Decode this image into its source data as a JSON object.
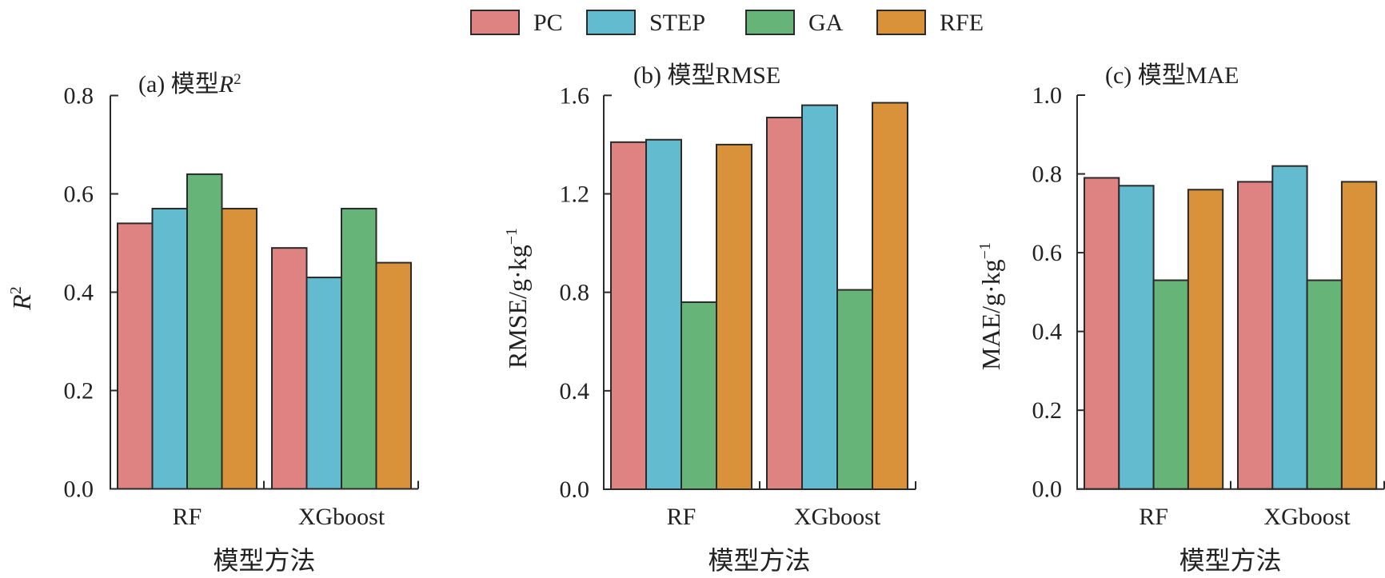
{
  "legend": {
    "items": [
      {
        "label": "PC",
        "color": "#DE8282"
      },
      {
        "label": "STEP",
        "color": "#62BBCF"
      },
      {
        "label": "GA",
        "color": "#66B477"
      },
      {
        "label": "RFE",
        "color": "#D99239"
      }
    ]
  },
  "chart_data": [
    {
      "type": "bar",
      "title": "(a) 模型R²",
      "title_prefix": "(a) 模型",
      "title_italic": "R",
      "title_sup": "2",
      "xlabel": "模型方法",
      "ylabel": "R²",
      "ylabel_italic": "R",
      "ylabel_sup": "2",
      "categories": [
        "RF",
        "XGboost"
      ],
      "ylim": [
        0,
        0.8
      ],
      "yticks": [
        0.0,
        0.2,
        0.4,
        0.6,
        0.8
      ],
      "ytick_labels": [
        "0.0",
        "0.2",
        "0.4",
        "0.6",
        "0.8"
      ],
      "grid": false,
      "series": [
        {
          "name": "PC",
          "values": [
            0.54,
            0.49
          ]
        },
        {
          "name": "STEP",
          "values": [
            0.57,
            0.43
          ]
        },
        {
          "name": "GA",
          "values": [
            0.64,
            0.57
          ]
        },
        {
          "name": "RFE",
          "values": [
            0.57,
            0.46
          ]
        }
      ]
    },
    {
      "type": "bar",
      "title": "(b) 模型RMSE",
      "xlabel": "模型方法",
      "ylabel": "RMSE/g·kg⁻¹",
      "ylabel_main": "RMSE/g·kg",
      "ylabel_sup": "−1",
      "categories": [
        "RF",
        "XGboost"
      ],
      "ylim": [
        0,
        1.6
      ],
      "yticks": [
        0.0,
        0.4,
        0.8,
        1.2,
        1.6
      ],
      "ytick_labels": [
        "0.0",
        "0.4",
        "0.8",
        "1.2",
        "1.6"
      ],
      "grid": false,
      "series": [
        {
          "name": "PC",
          "values": [
            1.41,
            1.51
          ]
        },
        {
          "name": "STEP",
          "values": [
            1.42,
            1.56
          ]
        },
        {
          "name": "GA",
          "values": [
            0.76,
            0.81
          ]
        },
        {
          "name": "RFE",
          "values": [
            1.4,
            1.57
          ]
        }
      ]
    },
    {
      "type": "bar",
      "title": "(c) 模型MAE",
      "xlabel": "模型方法",
      "ylabel": "MAE/g·kg⁻¹",
      "ylabel_main": "MAE/g·kg",
      "ylabel_sup": "−1",
      "categories": [
        "RF",
        "XGboost"
      ],
      "ylim": [
        0,
        1.0
      ],
      "yticks": [
        0.0,
        0.2,
        0.4,
        0.6,
        0.8,
        1.0
      ],
      "ytick_labels": [
        "0.0",
        "0.2",
        "0.4",
        "0.6",
        "0.8",
        "1.0"
      ],
      "grid": false,
      "series": [
        {
          "name": "PC",
          "values": [
            0.79,
            0.78
          ]
        },
        {
          "name": "STEP",
          "values": [
            0.77,
            0.82
          ]
        },
        {
          "name": "GA",
          "values": [
            0.53,
            0.53
          ]
        },
        {
          "name": "RFE",
          "values": [
            0.76,
            0.78
          ]
        }
      ]
    }
  ],
  "legend_placement": "top-center"
}
